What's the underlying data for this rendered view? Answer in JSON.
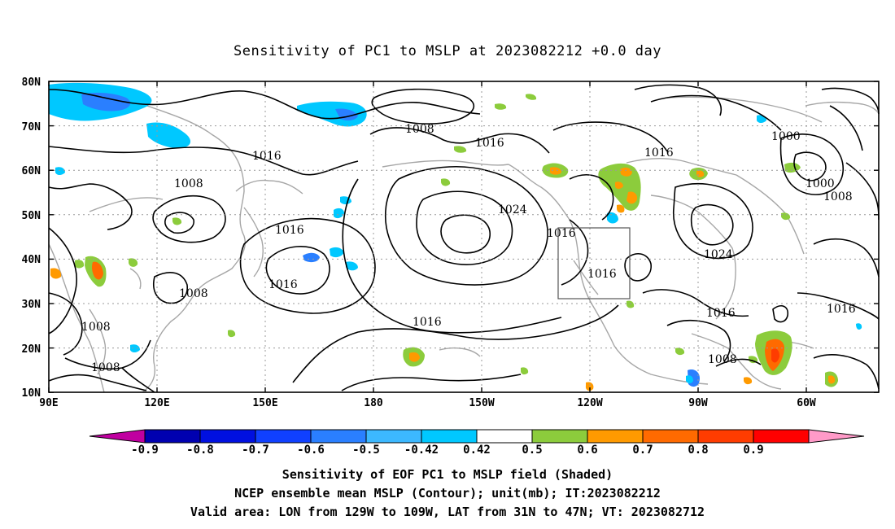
{
  "title": "Sensitivity of PC1 to MSLP at 2023082212 +0.0 day",
  "lat_ticks": [
    "80N",
    "70N",
    "60N",
    "50N",
    "40N",
    "30N",
    "20N",
    "10N"
  ],
  "lon_ticks": [
    "90E",
    "120E",
    "150E",
    "180",
    "150W",
    "120W",
    "90W",
    "60W"
  ],
  "contour_labels": [
    "1008",
    "1016",
    "1000",
    "1000",
    "1008",
    "1016",
    "1008",
    "1024",
    "1016",
    "1016",
    "1016",
    "1016",
    "1008",
    "1008",
    "1016",
    "1024",
    "1016",
    "1016",
    "1016",
    "1008"
  ],
  "colorbar": {
    "ticks": [
      "-0.9",
      "-0.8",
      "-0.7",
      "-0.6",
      "-0.5",
      "-0.42",
      "0.42",
      "0.5",
      "0.6",
      "0.7",
      "0.8",
      "0.9"
    ],
    "colors": [
      "#c000a0",
      "#0000b0",
      "#0010e0",
      "#1040ff",
      "#2a7fff",
      "#3cb8ff",
      "#00c8ff",
      "#ffffff",
      "#8ccc3c",
      "#ff9a00",
      "#ff6a00",
      "#ff3c00",
      "#ff0000",
      "#ff9ac8"
    ]
  },
  "footer": [
    "Sensitivity of EOF PC1 to MSLP field (Shaded)",
    "NCEP ensemble mean MSLP (Contour); unit(mb); IT:2023082212",
    "Valid area: LON from 129W to 109W, LAT from 31N to 47N; VT: 2023082712"
  ]
}
